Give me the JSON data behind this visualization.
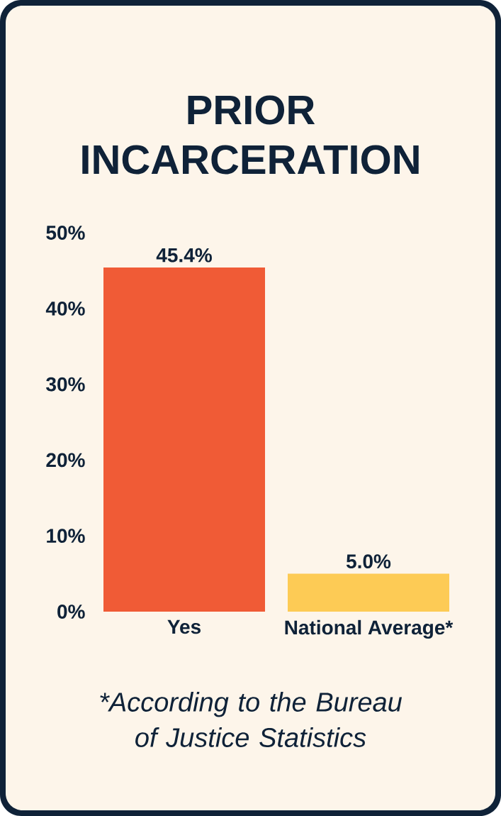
{
  "chart_data": {
    "type": "bar",
    "title": "PRIOR INCARCERATION",
    "categories": [
      "Yes",
      "National Average*"
    ],
    "values": [
      45.4,
      5.0
    ],
    "colors": [
      "#f05b36",
      "#fdcb55"
    ],
    "value_labels": [
      "45.4%",
      "5.0%"
    ],
    "ylim": [
      0,
      50
    ],
    "yticks": [
      {
        "value": 0,
        "label": "0%"
      },
      {
        "value": 10,
        "label": "10%"
      },
      {
        "value": 20,
        "label": "20%"
      },
      {
        "value": 30,
        "label": "30%"
      },
      {
        "value": 40,
        "label": "40%"
      },
      {
        "value": 50,
        "label": "50%"
      }
    ],
    "annotations": [
      "*According to the Bureau of Justice Statistics"
    ]
  }
}
